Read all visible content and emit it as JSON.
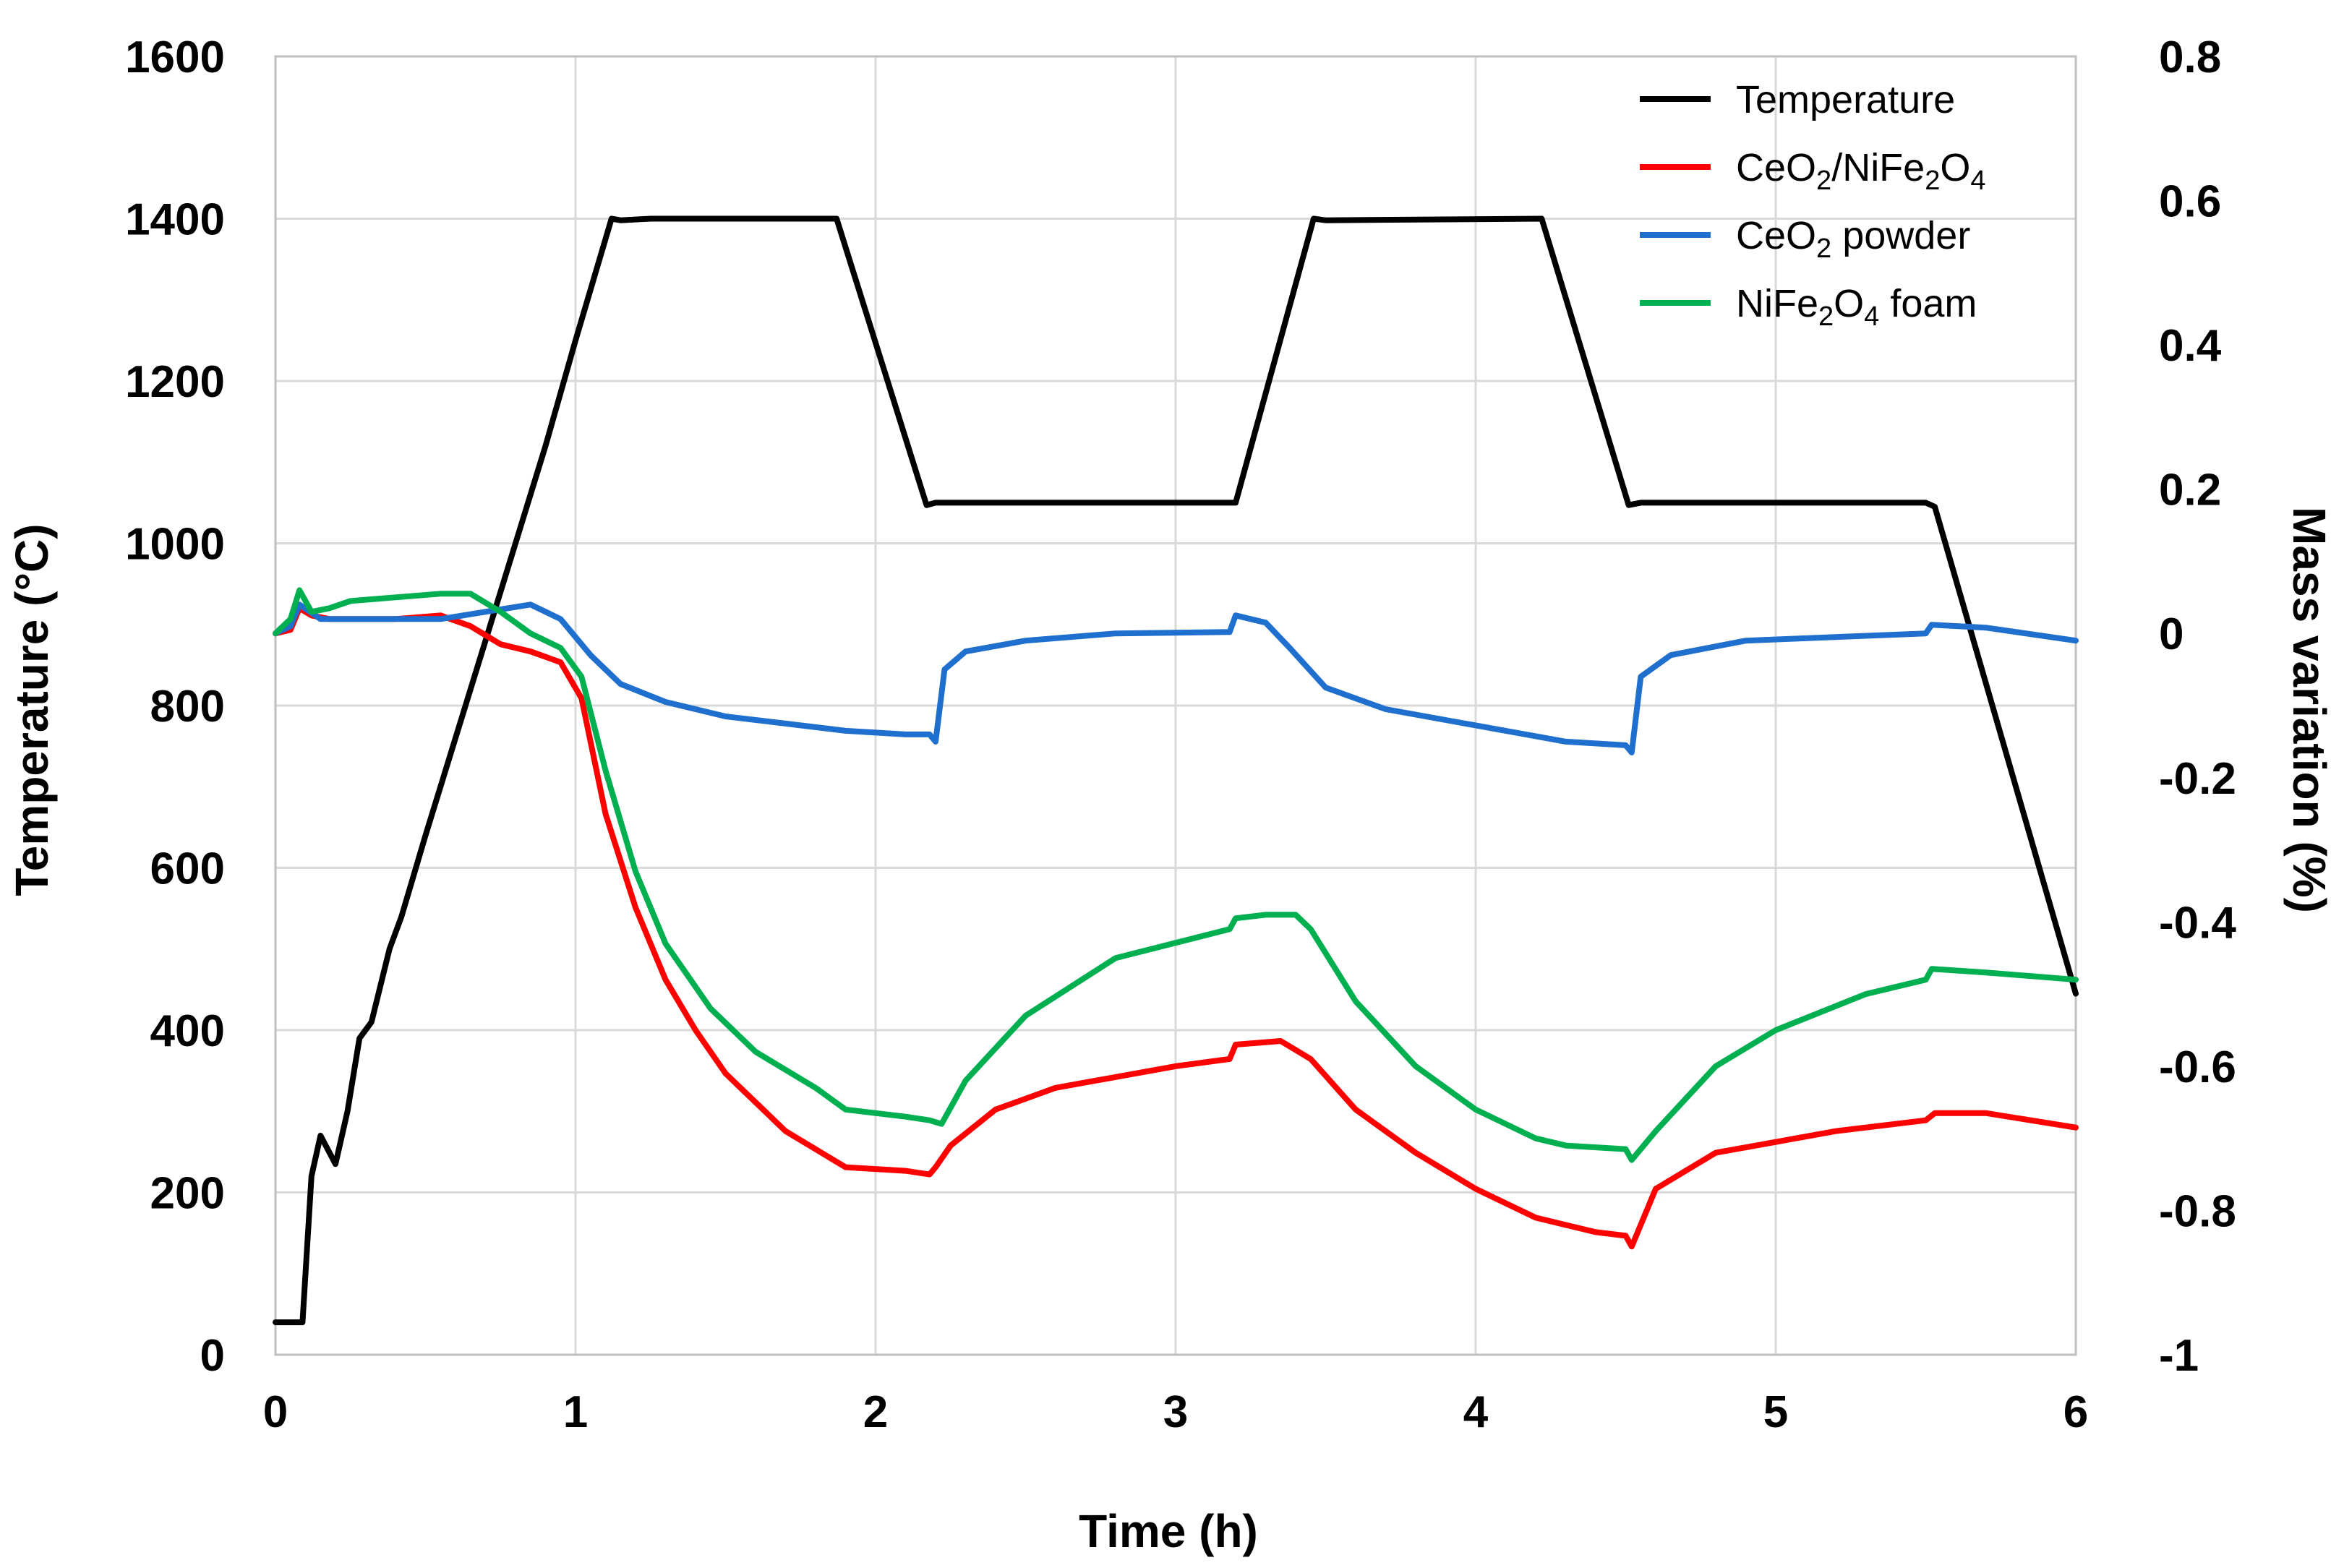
{
  "chart_data": {
    "type": "line",
    "title": "",
    "xlabel": "Time (h)",
    "ylabel": "Temperature (°C)",
    "y2label": "Mass variation (%)",
    "xlim": [
      0,
      6
    ],
    "ylim": [
      0,
      1600
    ],
    "y2lim": [
      -1,
      0.8
    ],
    "xticks": [
      "0",
      "1",
      "2",
      "3",
      "4",
      "5",
      "6"
    ],
    "yticks": [
      "0",
      "200",
      "400",
      "600",
      "800",
      "1000",
      "1200",
      "1400",
      "1600"
    ],
    "y2ticks": [
      "-1",
      "-0.8",
      "-0.6",
      "-0.4",
      "-0.2",
      "0",
      "0.2",
      "0.4",
      "0.6",
      "0.8"
    ],
    "grid": true,
    "legend_position": "top-right",
    "colors": {
      "temperature": "#000000",
      "composite": "#ff0000",
      "ceo2": "#1f6fcf",
      "foam": "#00b050"
    },
    "series": [
      {
        "key": "temperature",
        "name": "Temperature",
        "legend": {
          "pre": "Temperature",
          "sub1": "",
          "mid": "",
          "sub2": "",
          "post": ""
        },
        "axis": "left",
        "x": [
          0,
          0.09,
          0.12,
          0.15,
          0.2,
          0.24,
          0.28,
          0.32,
          0.38,
          0.42,
          0.5,
          0.6,
          0.7,
          0.8,
          0.9,
          1.0,
          1.12,
          1.15,
          1.25,
          1.87,
          2.17,
          2.2,
          3.17,
          3.2,
          3.46,
          3.5,
          4.22,
          4.51,
          4.55,
          5.5,
          5.53,
          6.0
        ],
        "values": [
          40,
          40,
          220,
          270,
          235,
          300,
          390,
          410,
          500,
          540,
          640,
          760,
          880,
          1000,
          1120,
          1250,
          1400,
          1398,
          1400,
          1400,
          1047,
          1050,
          1050,
          1050,
          1400,
          1398,
          1400,
          1047,
          1050,
          1050,
          1045,
          445
        ]
      },
      {
        "key": "composite",
        "name": "CeO2/NiFe2O4",
        "legend": {
          "pre": "CeO",
          "sub1": "2",
          "mid": "/NiFe",
          "sub2": "2",
          "post": "O₄"
        },
        "axis": "right",
        "x": [
          0,
          0.05,
          0.08,
          0.12,
          0.18,
          0.25,
          0.4,
          0.55,
          0.65,
          0.75,
          0.85,
          0.95,
          1.02,
          1.1,
          1.2,
          1.3,
          1.4,
          1.5,
          1.7,
          1.9,
          2.1,
          2.18,
          2.2,
          2.25,
          2.4,
          2.6,
          3.0,
          3.18,
          3.2,
          3.35,
          3.45,
          3.6,
          3.8,
          4.0,
          4.2,
          4.4,
          4.5,
          4.52,
          4.6,
          4.8,
          5.2,
          5.5,
          5.53,
          5.7,
          6.0
        ],
        "values": [
          0,
          0.005,
          0.035,
          0.025,
          0.02,
          0.02,
          0.02,
          0.025,
          0.01,
          -0.015,
          -0.025,
          -0.04,
          -0.09,
          -0.25,
          -0.38,
          -0.48,
          -0.55,
          -0.61,
          -0.69,
          -0.74,
          -0.745,
          -0.75,
          -0.74,
          -0.71,
          -0.66,
          -0.63,
          -0.6,
          -0.59,
          -0.57,
          -0.565,
          -0.59,
          -0.66,
          -0.72,
          -0.77,
          -0.81,
          -0.83,
          -0.835,
          -0.85,
          -0.77,
          -0.72,
          -0.69,
          -0.675,
          -0.665,
          -0.665,
          -0.685
        ]
      },
      {
        "key": "ceo2",
        "name": "CeO2 powder",
        "legend": {
          "pre": "CeO",
          "sub1": "2",
          "mid": " powder",
          "sub2": "",
          "post": ""
        },
        "axis": "right",
        "x": [
          0,
          0.05,
          0.08,
          0.15,
          0.25,
          0.4,
          0.55,
          0.7,
          0.85,
          0.95,
          1.05,
          1.15,
          1.3,
          1.5,
          1.7,
          1.9,
          2.1,
          2.18,
          2.2,
          2.23,
          2.3,
          2.5,
          2.8,
          3.18,
          3.2,
          3.3,
          3.38,
          3.5,
          3.7,
          3.9,
          4.1,
          4.3,
          4.5,
          4.52,
          4.55,
          4.65,
          4.9,
          5.5,
          5.52,
          5.7,
          6.0
        ],
        "values": [
          0,
          0.01,
          0.04,
          0.02,
          0.02,
          0.02,
          0.02,
          0.03,
          0.04,
          0.02,
          -0.03,
          -0.07,
          -0.095,
          -0.115,
          -0.125,
          -0.135,
          -0.14,
          -0.14,
          -0.15,
          -0.05,
          -0.025,
          -0.01,
          0,
          0.002,
          0.025,
          0.015,
          -0.02,
          -0.075,
          -0.105,
          -0.12,
          -0.135,
          -0.15,
          -0.155,
          -0.165,
          -0.06,
          -0.03,
          -0.01,
          0,
          0.012,
          0.008,
          -0.01
        ]
      },
      {
        "key": "foam",
        "name": "NiFe2O4 foam",
        "legend": {
          "pre": "NiFe",
          "sub1": "2",
          "mid": "O",
          "sub2": "4",
          "post": " foam"
        },
        "axis": "right",
        "x": [
          0,
          0.05,
          0.08,
          0.12,
          0.18,
          0.25,
          0.4,
          0.55,
          0.65,
          0.75,
          0.85,
          0.95,
          1.02,
          1.1,
          1.2,
          1.3,
          1.45,
          1.6,
          1.8,
          1.9,
          2.1,
          2.18,
          2.22,
          2.3,
          2.5,
          2.8,
          3.18,
          3.2,
          3.3,
          3.4,
          3.45,
          3.6,
          3.8,
          4.0,
          4.2,
          4.3,
          4.5,
          4.52,
          4.6,
          4.8,
          5.0,
          5.3,
          5.5,
          5.52,
          5.7,
          6.0
        ],
        "values": [
          0,
          0.02,
          0.06,
          0.03,
          0.035,
          0.045,
          0.05,
          0.055,
          0.055,
          0.03,
          0.0,
          -0.02,
          -0.06,
          -0.19,
          -0.33,
          -0.43,
          -0.52,
          -0.58,
          -0.63,
          -0.66,
          -0.67,
          -0.675,
          -0.68,
          -0.62,
          -0.53,
          -0.45,
          -0.41,
          -0.395,
          -0.39,
          -0.39,
          -0.41,
          -0.51,
          -0.6,
          -0.66,
          -0.7,
          -0.71,
          -0.715,
          -0.73,
          -0.69,
          -0.6,
          -0.55,
          -0.5,
          -0.48,
          -0.465,
          -0.47,
          -0.48
        ]
      }
    ]
  }
}
